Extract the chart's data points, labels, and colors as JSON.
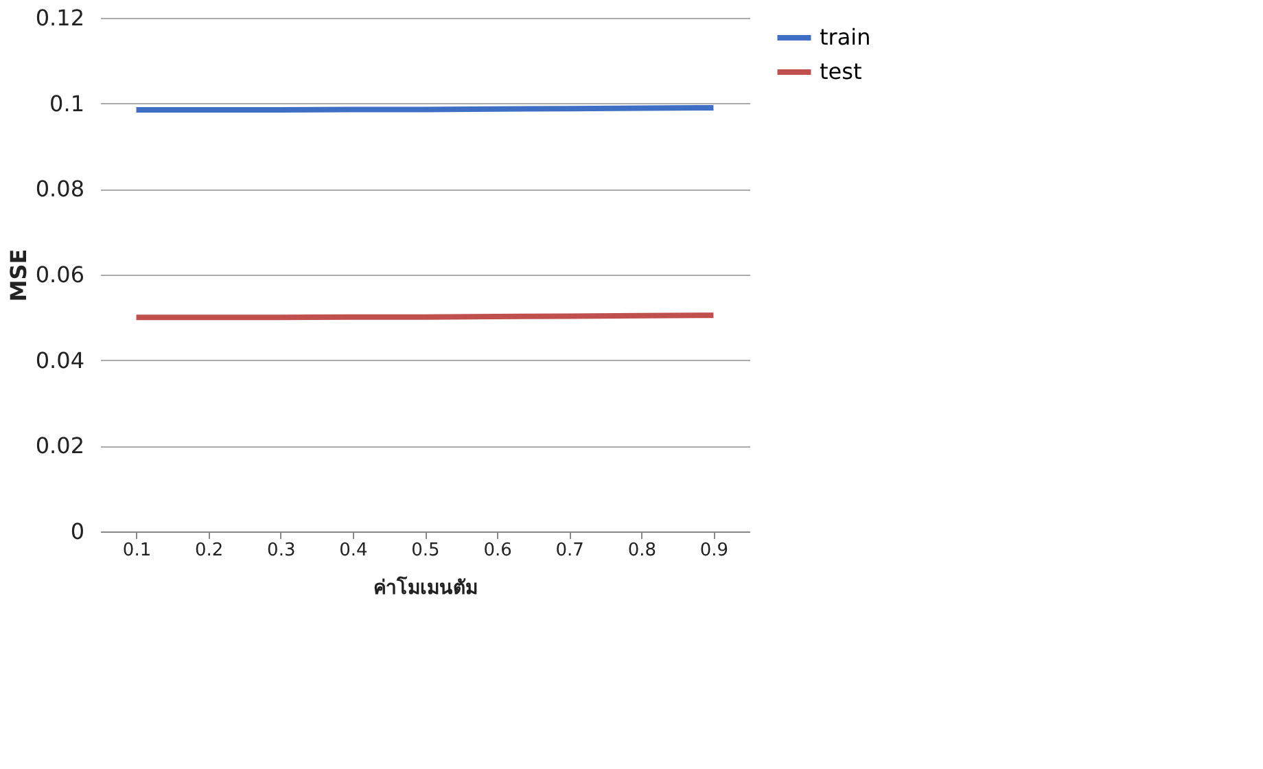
{
  "chart_data": {
    "type": "line",
    "xlabel": "ค่าโมเมนตัม",
    "ylabel": "MSE",
    "categories": [
      "0.1",
      "0.2",
      "0.3",
      "0.4",
      "0.5",
      "0.6",
      "0.7",
      "0.8",
      "0.9"
    ],
    "series": [
      {
        "name": "train",
        "color": "#3f6fc4",
        "values": [
          0.0985,
          0.0985,
          0.0985,
          0.0986,
          0.0986,
          0.0987,
          0.0988,
          0.0989,
          0.099
        ]
      },
      {
        "name": "test",
        "color": "#c0504d",
        "values": [
          0.05,
          0.05,
          0.05,
          0.0501,
          0.0501,
          0.0502,
          0.0503,
          0.0504,
          0.0505
        ]
      }
    ],
    "ylim": [
      0,
      0.12
    ],
    "yticks": [
      0,
      0.02,
      0.04,
      0.06,
      0.08,
      0.1,
      0.12
    ],
    "grid": "y",
    "legend": "right",
    "marker": "none",
    "line_style": "solid"
  }
}
